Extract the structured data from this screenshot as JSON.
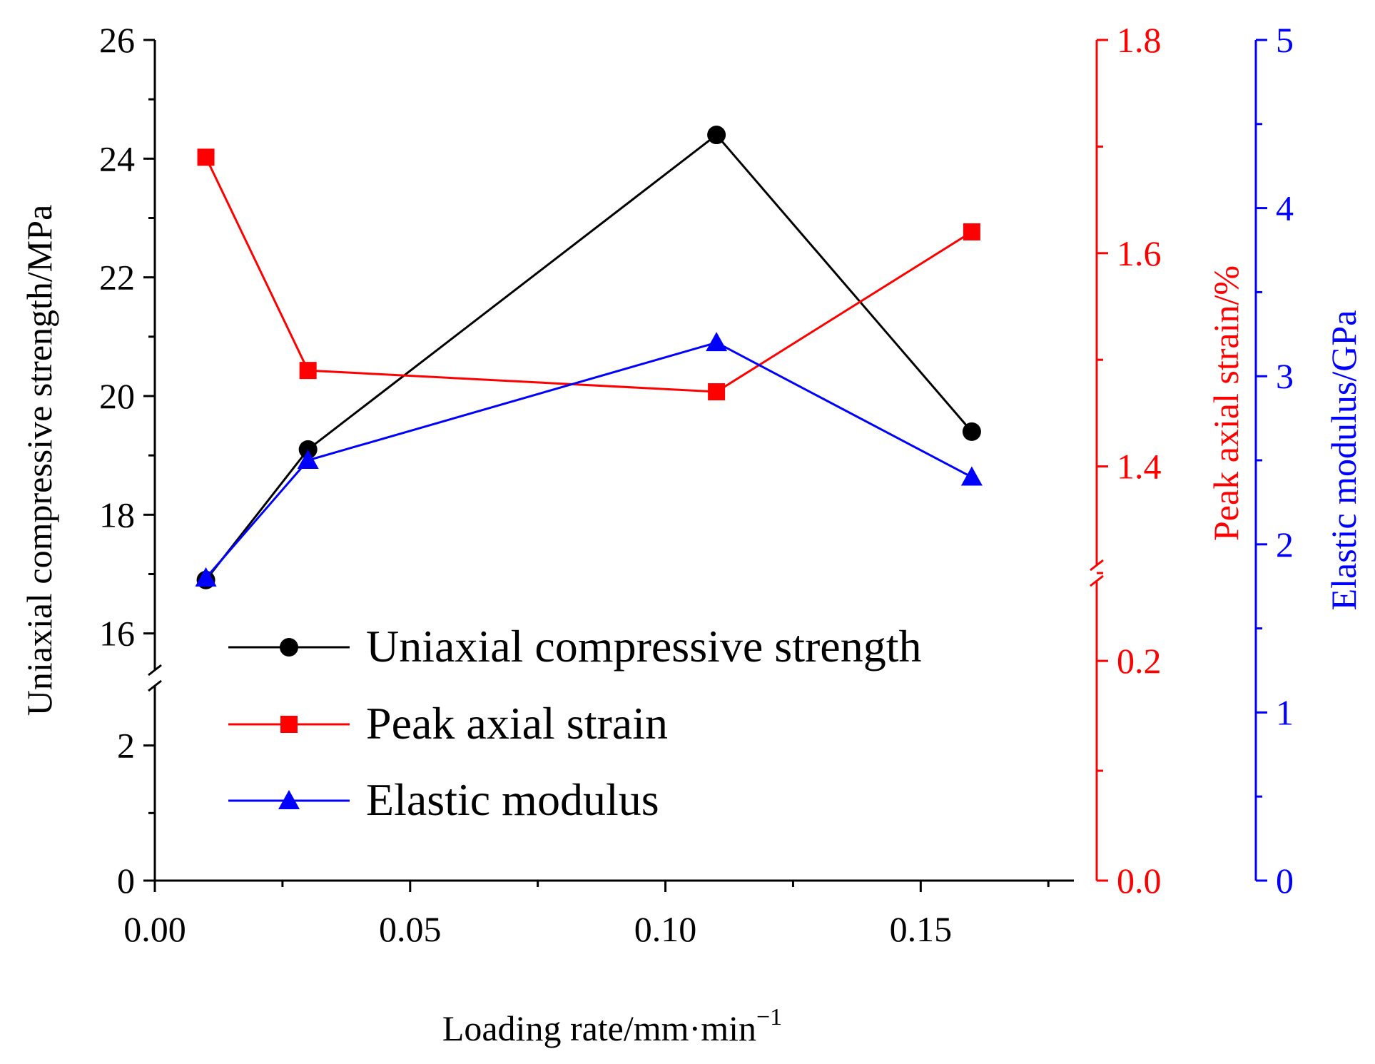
{
  "colors": {
    "ucs": "#000000",
    "strain": "#ff0000",
    "modulus": "#0000ff"
  },
  "chart_data": {
    "type": "line",
    "title": "",
    "xlabel": "Loading rate/mm·min",
    "xlabel_sup": "−1",
    "x": [
      0.01,
      0.03,
      0.11,
      0.16
    ],
    "xlim": [
      0.0,
      0.18
    ],
    "x_ticks": [
      "0.00",
      "0.05",
      "0.10",
      "0.15"
    ],
    "axes": {
      "left": {
        "label": "Uniaxial compressive strength/MPa",
        "broken": true,
        "lower_range": [
          0,
          3
        ],
        "upper_range": [
          15.25,
          26
        ],
        "ticks": [
          "0",
          "2",
          "16",
          "18",
          "20",
          "22",
          "24",
          "26"
        ]
      },
      "right1": {
        "label": "Peak axial strain/%",
        "broken": true,
        "lower_range": [
          0,
          0.28
        ],
        "upper_range": [
          1.3,
          1.8
        ],
        "ticks": [
          "0.0",
          "0.2",
          "1.4",
          "1.6",
          "1.8"
        ]
      },
      "right2": {
        "label": "Elastic modulus/GPa",
        "range": [
          0,
          5
        ],
        "ticks": [
          "0",
          "1",
          "2",
          "3",
          "4",
          "5"
        ]
      }
    },
    "series": [
      {
        "name": "Uniaxial compressive strength",
        "axis": "left",
        "marker": "circle",
        "values": [
          16.9,
          19.1,
          24.4,
          19.4
        ]
      },
      {
        "name": "Peak axial strain",
        "axis": "right1",
        "marker": "square",
        "values": [
          1.69,
          1.49,
          1.47,
          1.62
        ]
      },
      {
        "name": "Elastic modulus",
        "axis": "right2",
        "marker": "triangle",
        "values": [
          1.8,
          2.5,
          3.2,
          2.4
        ]
      }
    ],
    "legend": {
      "position": "bottom-left",
      "entries": [
        "Uniaxial compressive strength",
        "Peak axial strain",
        "Elastic modulus"
      ]
    }
  }
}
